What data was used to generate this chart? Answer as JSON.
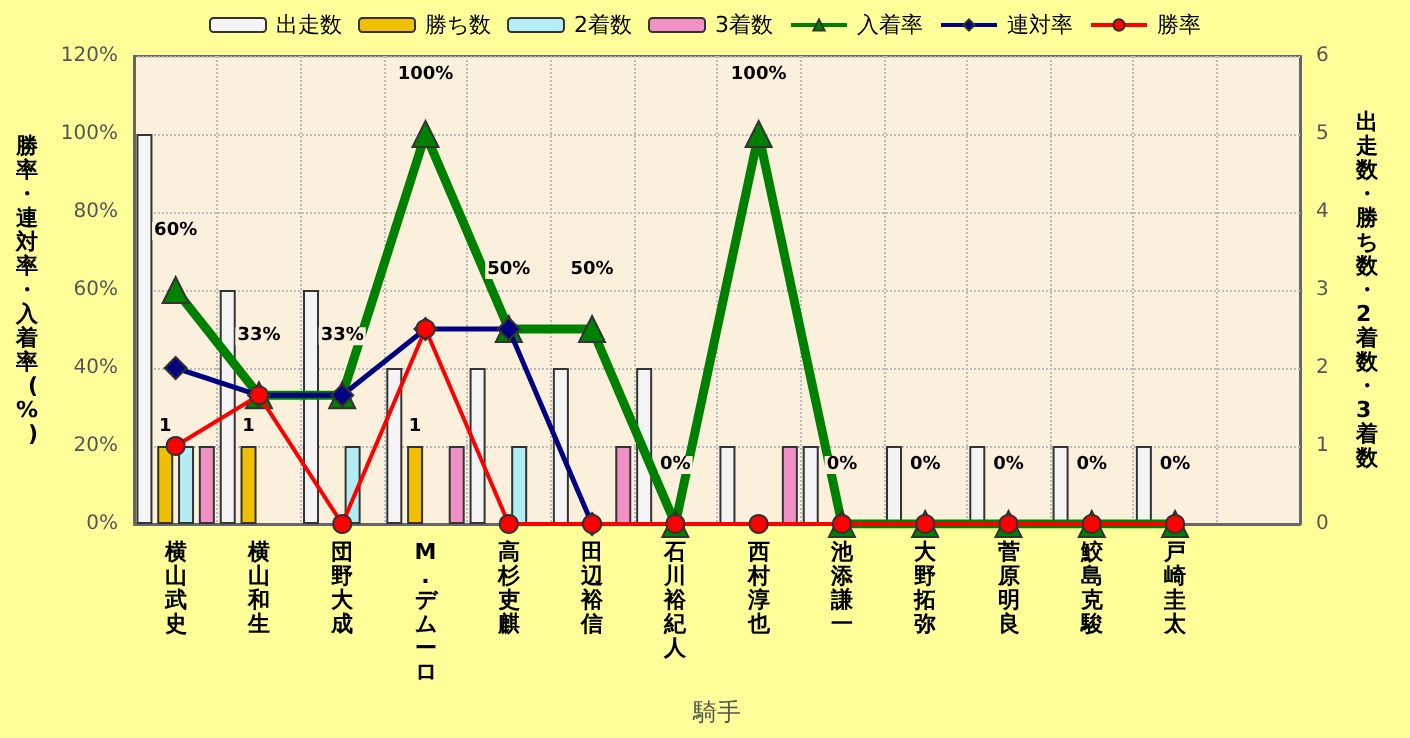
{
  "chart_data": {
    "type": "bar",
    "xlabel": "騎手",
    "ylabel": "勝率・連対率・入着率(%)",
    "y2label": "出走数・勝ち数・2着数・3着数",
    "categories": [
      "横山武史",
      "横山和生",
      "団野大成",
      "M.デムーロ",
      "高杉吏麒",
      "田辺裕信",
      "石川裕紀人",
      "西村淳也",
      "池添謙一",
      "大野拓弥",
      "菅原明良",
      "鮫島克駿",
      "戸崎圭太",
      null
    ],
    "series": [
      {
        "name": "出走数",
        "axis": "y2",
        "color": "#f4f4f4",
        "values": [
          5,
          3,
          3,
          2,
          2,
          2,
          2,
          1,
          1,
          1,
          1,
          1,
          1,
          null
        ]
      },
      {
        "name": "勝ち数",
        "axis": "y2",
        "color": "#f0c000",
        "values": [
          1,
          1,
          0,
          1,
          0,
          0,
          0,
          0,
          0,
          0,
          0,
          0,
          0,
          null
        ],
        "value_labels": [
          "1",
          "1",
          null,
          "1",
          null,
          null,
          null,
          null,
          null,
          null,
          null,
          null,
          null,
          null
        ]
      },
      {
        "name": "2着数",
        "axis": "y2",
        "color": "#b4ecf4",
        "values": [
          1,
          0,
          1,
          0,
          1,
          0,
          0,
          0,
          0,
          0,
          0,
          0,
          0,
          null
        ]
      },
      {
        "name": "3着数",
        "axis": "y2",
        "color": "#f090c4",
        "values": [
          1,
          0,
          0,
          1,
          0,
          1,
          0,
          1,
          0,
          0,
          0,
          0,
          0,
          null
        ]
      },
      {
        "name": "入着率",
        "type": "line",
        "axis": "y",
        "color": "#008000",
        "marker": "triangle",
        "values": [
          60,
          33,
          33,
          100,
          50,
          50,
          0,
          100,
          0,
          0,
          0,
          0,
          0,
          null
        ],
        "value_labels": [
          "60%",
          "33%",
          "33%",
          "100%",
          "50%",
          "50%",
          "0%",
          "100%",
          "0%",
          "0%",
          "0%",
          "0%",
          "0%",
          null
        ]
      },
      {
        "name": "連対率",
        "type": "line",
        "axis": "y",
        "color": "#000080",
        "marker": "diamond",
        "values": [
          40,
          33,
          33,
          50,
          50,
          0,
          null,
          null,
          null,
          null,
          null,
          null,
          null,
          null
        ]
      },
      {
        "name": "勝率",
        "type": "line",
        "axis": "y",
        "color": "#ff0000",
        "marker": "circle",
        "values": [
          20,
          33,
          0,
          50,
          0,
          0,
          0,
          0,
          0,
          0,
          0,
          0,
          0,
          null
        ]
      }
    ],
    "ylim": [
      0,
      120
    ],
    "yticks": [
      {
        "value": 0,
        "label": "0%"
      },
      {
        "value": 20,
        "label": "20%"
      },
      {
        "value": 40,
        "label": "40%"
      },
      {
        "value": 60,
        "label": "60%"
      },
      {
        "value": 80,
        "label": "80%"
      },
      {
        "value": 100,
        "label": "100%"
      },
      {
        "value": 120,
        "label": "120%"
      }
    ],
    "y2lim": [
      0,
      6
    ],
    "y2ticks": [
      0,
      1,
      2,
      3,
      4,
      5,
      6
    ],
    "grid": true,
    "legend": "top"
  }
}
